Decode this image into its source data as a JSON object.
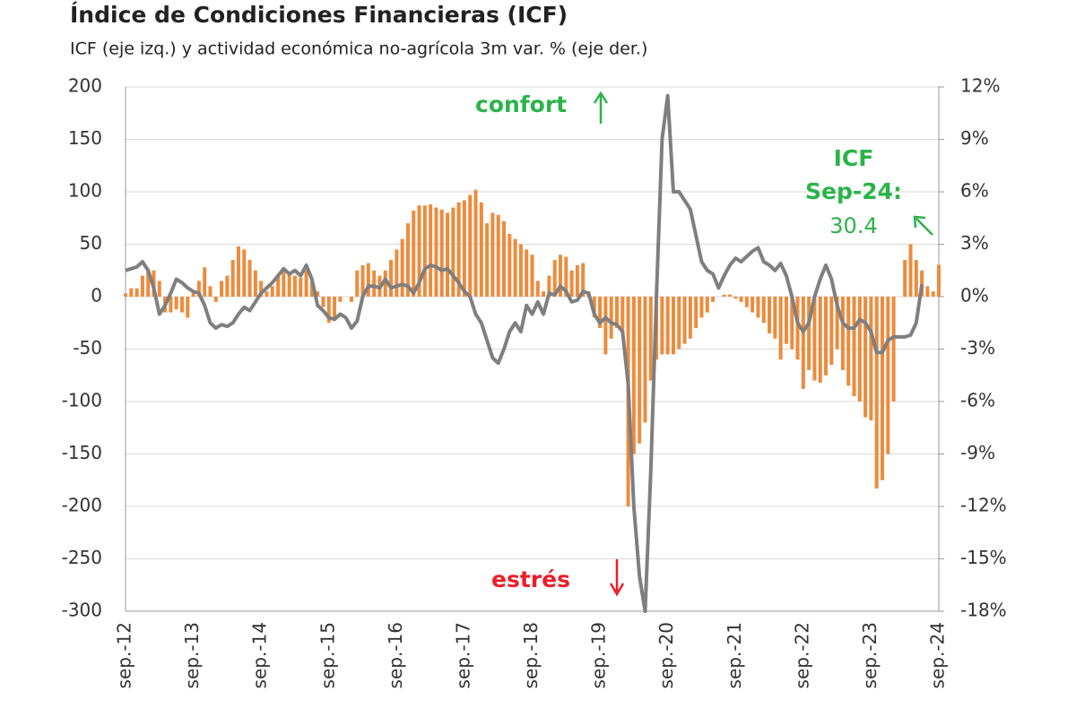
{
  "chart_data": {
    "type": "bar",
    "title": "Índice de Condiciones Financieras (ICF)",
    "subtitle": "ICF (eje izq.) y actividad económica no-agrícola 3m var. % (eje der.)",
    "annotations": {
      "confort": "confort",
      "estres": "estrés",
      "icf": "ICF",
      "date": "Sep-24:",
      "last": "30.4"
    },
    "categories": [
      "sep.-12",
      null,
      null,
      null,
      null,
      null,
      null,
      null,
      null,
      null,
      null,
      null,
      "sep.-13",
      null,
      null,
      null,
      null,
      null,
      null,
      null,
      null,
      null,
      null,
      null,
      "sep.-14",
      null,
      null,
      null,
      null,
      null,
      null,
      null,
      null,
      null,
      null,
      null,
      "sep.-15",
      null,
      null,
      null,
      null,
      null,
      null,
      null,
      null,
      null,
      null,
      null,
      "sep.-16",
      null,
      null,
      null,
      null,
      null,
      null,
      null,
      null,
      null,
      null,
      null,
      "sep.-17",
      null,
      null,
      null,
      null,
      null,
      null,
      null,
      null,
      null,
      null,
      null,
      "sep.-18",
      null,
      null,
      null,
      null,
      null,
      null,
      null,
      null,
      null,
      null,
      null,
      "sep.-19",
      null,
      null,
      null,
      null,
      null,
      null,
      null,
      null,
      null,
      null,
      null,
      "sep.-20",
      null,
      null,
      null,
      null,
      null,
      null,
      null,
      null,
      null,
      null,
      null,
      "sep.-21",
      null,
      null,
      null,
      null,
      null,
      null,
      null,
      null,
      null,
      null,
      null,
      "sep.-22",
      null,
      null,
      null,
      null,
      null,
      null,
      null,
      null,
      null,
      null,
      null,
      "sep.-23",
      null,
      null,
      null,
      null,
      null,
      null,
      null,
      null,
      null,
      null,
      null,
      "sep.-24"
    ],
    "series": [
      {
        "type": "bar",
        "axis": "y",
        "color": "#ed8b3c",
        "values": [
          3,
          8,
          8,
          20,
          25,
          25,
          15,
          -15,
          -15,
          -12,
          -15,
          -20,
          5,
          15,
          28,
          10,
          -5,
          15,
          20,
          35,
          48,
          45,
          35,
          25,
          15,
          5,
          10,
          20,
          25,
          22,
          20,
          18,
          25,
          15,
          5,
          -10,
          -25,
          -20,
          -5,
          0,
          -5,
          25,
          30,
          32,
          25,
          20,
          25,
          35,
          45,
          55,
          70,
          82,
          87,
          87,
          88,
          85,
          83,
          80,
          85,
          90,
          92,
          97,
          102,
          90,
          70,
          80,
          78,
          72,
          60,
          55,
          50,
          45,
          40,
          15,
          5,
          20,
          35,
          40,
          38,
          25,
          30,
          32,
          5,
          -20,
          -30,
          -55,
          -40,
          -30,
          -35,
          -200,
          -150,
          -140,
          -120,
          -80,
          -60,
          -55,
          -55,
          -55,
          -50,
          -45,
          -40,
          -30,
          -20,
          -15,
          -5,
          0,
          2,
          2,
          -2,
          -5,
          -10,
          -15,
          -20,
          -25,
          -35,
          -40,
          -60,
          -45,
          -50,
          -60,
          -88,
          -70,
          -80,
          -82,
          -75,
          -65,
          -50,
          -70,
          -85,
          -95,
          -100,
          -115,
          -118,
          -183,
          -175,
          -150,
          -100,
          0,
          35,
          50,
          35,
          25,
          10,
          5,
          30.4
        ]
      },
      {
        "type": "line",
        "axis": "y2",
        "color": "#7f7f7f",
        "values": [
          1.5,
          1.6,
          1.7,
          2.0,
          1.5,
          0.5,
          -1.0,
          -0.5,
          0.2,
          1.0,
          0.8,
          0.5,
          0.3,
          0.2,
          -0.5,
          -1.5,
          -1.8,
          -1.6,
          -1.7,
          -1.5,
          -1.0,
          -0.6,
          -0.8,
          -0.3,
          0.2,
          0.5,
          0.8,
          1.2,
          1.6,
          1.3,
          1.5,
          1.2,
          1.8,
          1.0,
          -0.5,
          -0.8,
          -1.2,
          -1.3,
          -1.0,
          -1.2,
          -1.8,
          -1.4,
          0,
          0.6,
          0.6,
          0.5,
          1.0,
          0.5,
          0.6,
          0.7,
          0.6,
          0.2,
          0.8,
          1.6,
          1.8,
          1.7,
          1.5,
          1.6,
          1.2,
          0.8,
          0.3,
          0,
          -1.0,
          -1.5,
          -2.5,
          -3.5,
          -3.8,
          -3.0,
          -2.0,
          -1.5,
          -2.0,
          -0.5,
          -1.0,
          -0.3,
          -1.0,
          0.2,
          0.1,
          0.6,
          0.3,
          -0.3,
          -0.2,
          0.3,
          0.2,
          -1.0,
          -1.5,
          -1.2,
          -1.5,
          -1.6,
          -2.0,
          -5,
          -12,
          -16,
          -18,
          -10,
          0,
          9,
          11.5,
          6,
          6,
          5.5,
          5,
          3.5,
          2,
          1.5,
          1.3,
          0.5,
          1.2,
          1.8,
          2.2,
          2.0,
          2.3,
          2.6,
          2.8,
          2.0,
          1.8,
          1.5,
          1.9,
          1.2,
          0,
          -1.5,
          -2.0,
          -1.5,
          0,
          1.0,
          1.8,
          1.0,
          -0.5,
          -1.5,
          -1.8,
          -1.8,
          -1.3,
          -1.5,
          -2.0,
          -3.2,
          -3.2,
          -2.5,
          -2.3,
          -2.3,
          -2.3,
          -2.2,
          -1.5,
          0.7,
          null,
          null,
          null
        ]
      }
    ],
    "ylim": [
      -300,
      200
    ],
    "yticks": [
      -300,
      -250,
      -200,
      -150,
      -100,
      -50,
      0,
      50,
      100,
      150,
      200
    ],
    "y2lim": [
      -18,
      12
    ],
    "y2ticks": [
      {
        "value": -18,
        "label": "-18%"
      },
      {
        "value": -15,
        "label": "-15%"
      },
      {
        "value": -12,
        "label": "-12%"
      },
      {
        "value": -9,
        "label": "-9%"
      },
      {
        "value": -6,
        "label": "-6%"
      },
      {
        "value": -3,
        "label": "-3%"
      },
      {
        "value": 0,
        "label": "0%"
      },
      {
        "value": 3,
        "label": "3%"
      },
      {
        "value": 6,
        "label": "6%"
      },
      {
        "value": 9,
        "label": "9%"
      },
      {
        "value": 12,
        "label": "12%"
      }
    ],
    "grid": true
  }
}
